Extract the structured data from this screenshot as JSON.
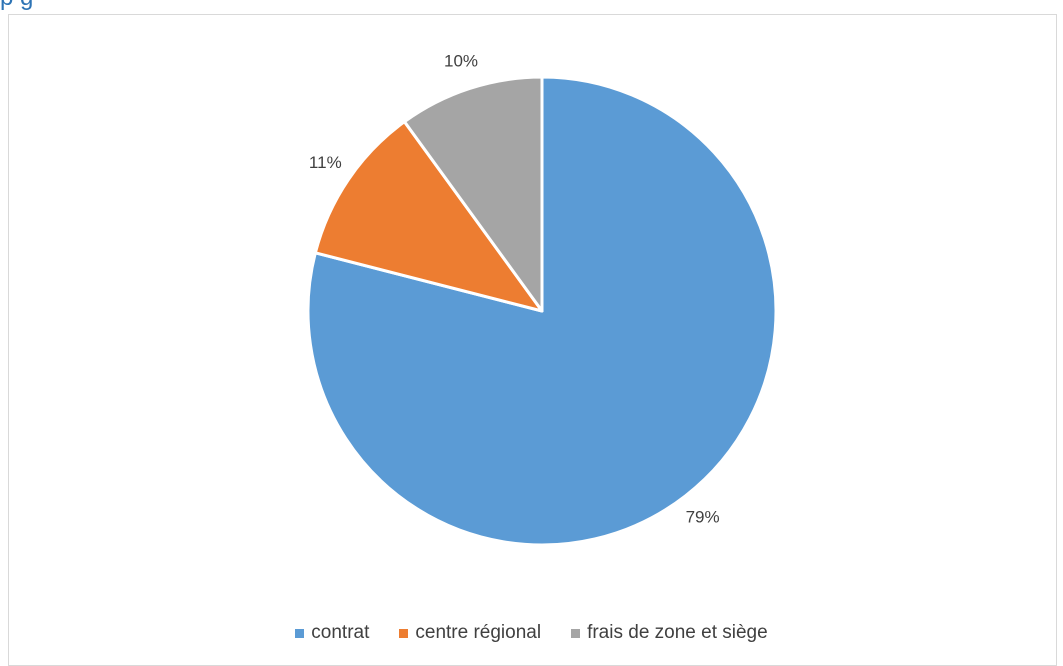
{
  "header": {
    "cut_title": "p      g   "
  },
  "chart_data": {
    "type": "pie",
    "title": "",
    "categories": [
      "contrat",
      "centre régional",
      "frais de zone et siège"
    ],
    "values": [
      79,
      11,
      10
    ],
    "data_labels": [
      "79%",
      "11%",
      "10%"
    ],
    "colors": [
      "#5b9bd5",
      "#ed7d31",
      "#a5a5a5"
    ],
    "start_angle_deg": 0,
    "direction": "clockwise",
    "legend_position": "bottom"
  }
}
